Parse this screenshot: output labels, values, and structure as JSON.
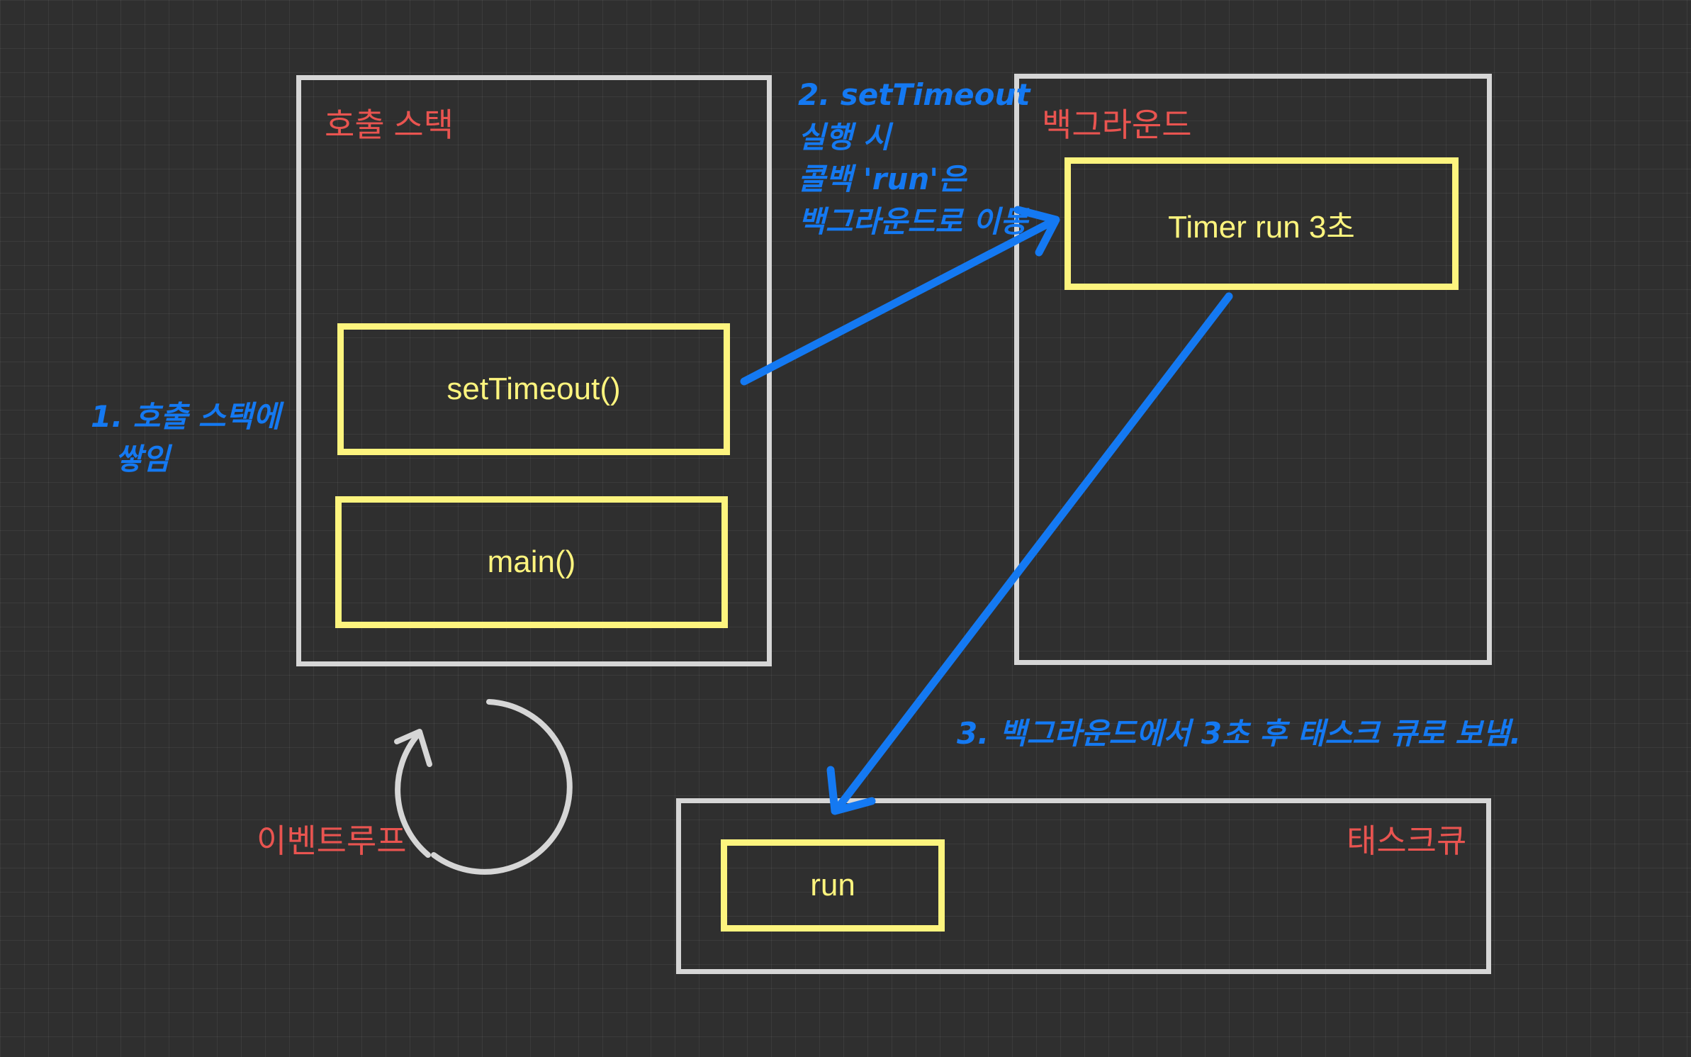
{
  "call_stack": {
    "label": "호출 스택",
    "frames": [
      "setTimeout()",
      "main()"
    ]
  },
  "background": {
    "label": "백그라운드",
    "timer": "Timer run 3초"
  },
  "task_queue": {
    "label": "태스크큐",
    "items": [
      "run"
    ]
  },
  "event_loop": {
    "label": "이벤트루프"
  },
  "notes": {
    "step1": [
      "1. 호출 스택에",
      "쌓임"
    ],
    "step2": [
      "2. setTimeout",
      "실행 시",
      "콜백 'run'은",
      "백그라운드로 이동"
    ],
    "step3": "3. 백그라운드에서 3초 후 태스크 큐로 보냄."
  },
  "colors": {
    "background": "#2f2f2f",
    "panel_border": "#d6d6d6",
    "box_border": "#fdf47e",
    "label": "#e95450",
    "annotation": "#1479f2"
  }
}
